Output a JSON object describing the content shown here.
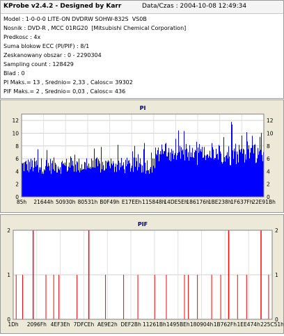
{
  "header": {
    "app_title": "KProbe v2.4.2 - Designed by Karr",
    "datetime": "Data/Czas : 2004-10-08 12:49:34"
  },
  "info_lines": [
    "Model : 1-0-0-0 LITE-ON DVDRW SOHW-832S  VS0B",
    "Nosnik : DVD-R , MCC 01RG20  [Mitsubishi Chemical Corporation]",
    "Predkosc : 4x",
    "Suma blokow ECC (PI/PIF) : 8/1",
    "Zeskanowany obszar : 0 - 2290304",
    "Sampling count : 128429",
    "Blad : 0",
    "PI Maks.= 13 , Srednio= 2,33 , Calosc= 39302",
    "PIF Maks.= 2 , Srednio= 0,03 , Calosc= 436"
  ],
  "colors": {
    "pi_bar": "#0000ff",
    "pif_bar": "#ff0000",
    "panel_bg": "#ece9d8",
    "plot_bg": "#ffffff",
    "title_text": "#000080"
  },
  "chart_data": [
    {
      "type": "bar",
      "title": "PI",
      "xlabel": "",
      "ylabel": "",
      "ylim": [
        0,
        13
      ],
      "yticks": [
        0,
        2,
        4,
        6,
        8,
        10,
        12
      ],
      "x_tick_labels": [
        "85h",
        "21644h",
        "50930h",
        "80531h",
        "B0F49h",
        "E17EEh",
        "115848h",
        "14DE5Eh",
        "186176h",
        "1BE238h",
        "1F637Fh",
        "22E91Bh"
      ],
      "grid": true,
      "baseline_value": 2.33,
      "max_value": 13,
      "note_shape": "dense bars, typical height 4-8, peaks up to 13 near right side"
    },
    {
      "type": "bar",
      "title": "PIF",
      "xlabel": "",
      "ylabel": "",
      "ylim": [
        0,
        2
      ],
      "yticks": [
        0,
        1,
        2
      ],
      "x_tick_labels": [
        "1Dh",
        "2096Fh",
        "4EF3Eh",
        "7DFCEh",
        "AE9E2h",
        "DEF2Bh",
        "11261Bh",
        "1495BEh",
        "180904h",
        "1B762Fh",
        "1EE474h",
        "225C51h"
      ],
      "grid": true,
      "spikes_x_fraction": [
        0.01,
        0.035,
        0.075,
        0.125,
        0.155,
        0.175,
        0.245,
        0.29,
        0.355,
        0.425,
        0.48,
        0.545,
        0.59,
        0.66,
        0.675,
        0.71,
        0.765,
        0.8,
        0.83,
        0.865,
        0.9,
        0.955,
        0.985
      ],
      "spikes_value": [
        1,
        1,
        2,
        1,
        1,
        1,
        1,
        2,
        1,
        1,
        1,
        1,
        1,
        1,
        1,
        1,
        1,
        1,
        2,
        1,
        1,
        2,
        1
      ]
    }
  ]
}
